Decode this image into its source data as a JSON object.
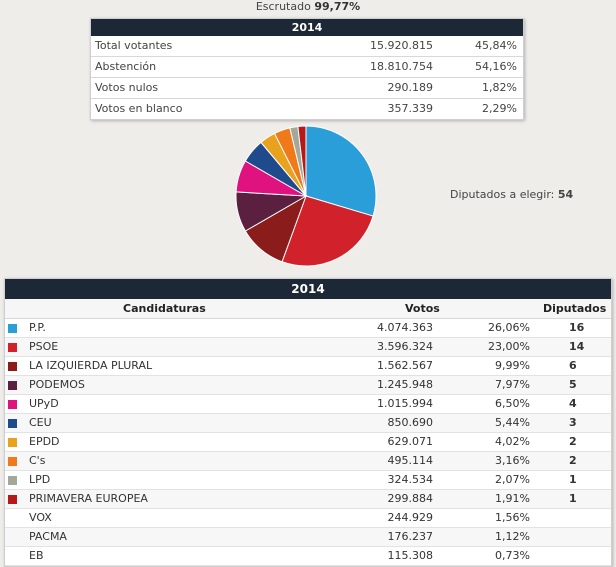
{
  "scrutiny": {
    "label": "Escrutado",
    "value": "99,77%"
  },
  "summary": {
    "year": "2014",
    "rows": [
      {
        "label": "Total votantes",
        "value": "15.920.815",
        "pct": "45,84%"
      },
      {
        "label": "Abstención",
        "value": "18.810.754",
        "pct": "54,16%"
      },
      {
        "label": "Votos nulos",
        "value": "290.189",
        "pct": "1,82%"
      },
      {
        "label": "Votos en blanco",
        "value": "357.339",
        "pct": "2,29%"
      }
    ]
  },
  "seats_to_elect": {
    "label": "Diputados a elegir:",
    "value": "54"
  },
  "results": {
    "year": "2014",
    "headers": {
      "candidacies": "Candidaturas",
      "votes": "Votos",
      "deputies": "Diputados"
    },
    "parties": [
      {
        "name": "P.P.",
        "votes": "4.074.363",
        "pct": "26,06%",
        "seats": "16",
        "color": "#2a9ed8"
      },
      {
        "name": "PSOE",
        "votes": "3.596.324",
        "pct": "23,00%",
        "seats": "14",
        "color": "#d1222b"
      },
      {
        "name": "LA IZQUIERDA PLURAL",
        "votes": "1.562.567",
        "pct": "9,99%",
        "seats": "6",
        "color": "#8a1c1c"
      },
      {
        "name": "PODEMOS",
        "votes": "1.245.948",
        "pct": "7,97%",
        "seats": "5",
        "color": "#5b2040"
      },
      {
        "name": "UPyD",
        "votes": "1.015.994",
        "pct": "6,50%",
        "seats": "4",
        "color": "#e0127f"
      },
      {
        "name": "CEU",
        "votes": "850.690",
        "pct": "5,44%",
        "seats": "3",
        "color": "#1f4a8c"
      },
      {
        "name": "EPDD",
        "votes": "629.071",
        "pct": "4,02%",
        "seats": "2",
        "color": "#e8a21e"
      },
      {
        "name": "C's",
        "votes": "495.114",
        "pct": "3,16%",
        "seats": "2",
        "color": "#f07a1a"
      },
      {
        "name": "LPD",
        "votes": "324.534",
        "pct": "2,07%",
        "seats": "1",
        "color": "#a3a89a"
      },
      {
        "name": "PRIMAVERA EUROPEA",
        "votes": "299.884",
        "pct": "1,91%",
        "seats": "1",
        "color": "#b51a1a"
      },
      {
        "name": "VOX",
        "votes": "244.929",
        "pct": "1,56%",
        "seats": "",
        "color": ""
      },
      {
        "name": "PACMA",
        "votes": "176.237",
        "pct": "1,12%",
        "seats": "",
        "color": ""
      },
      {
        "name": "EB",
        "votes": "115.308",
        "pct": "0,73%",
        "seats": "",
        "color": ""
      }
    ]
  },
  "chart_data": {
    "type": "pie",
    "categories": [
      "P.P.",
      "PSOE",
      "LA IZQUIERDA PLURAL",
      "PODEMOS",
      "UPyD",
      "CEU",
      "EPDD",
      "C's",
      "LPD",
      "PRIMAVERA EUROPEA"
    ],
    "values": [
      16,
      14,
      6,
      5,
      4,
      3,
      2,
      2,
      1,
      1
    ],
    "colors": [
      "#2a9ed8",
      "#d1222b",
      "#8a1c1c",
      "#5b2040",
      "#e0127f",
      "#1f4a8c",
      "#e8a21e",
      "#f07a1a",
      "#a3a89a",
      "#b51a1a"
    ],
    "title": "",
    "legend": "none"
  }
}
